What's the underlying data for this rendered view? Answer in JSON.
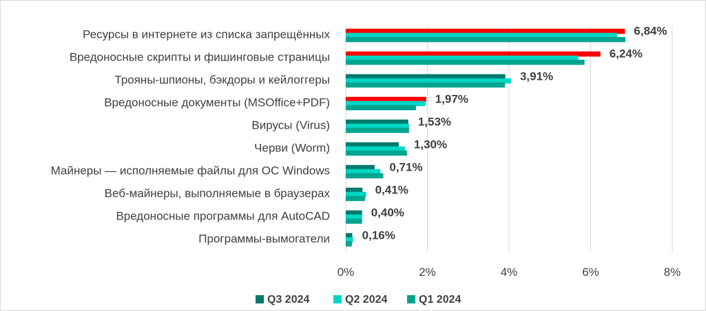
{
  "chart_data": {
    "type": "bar",
    "orientation": "horizontal",
    "categories": [
      "Ресурсы в интернете из списка запрещённых",
      "Вредоносные скрипты и фишинговые страницы",
      "Трояны-шпионы, бэкдоры и кейлоггеры",
      "Вредоносные документы (MSOffice+PDF)",
      "Вирусы (Virus)",
      "Черви (Worm)",
      "Майнеры — исполняемые файлы для ОС Windows",
      "Веб-майнеры, выполняемые в браузерах",
      "Вредоносные программы для AutoCAD",
      "Программы-вымогатели"
    ],
    "series": [
      {
        "name": "Q3 2024",
        "values": [
          6.84,
          6.24,
          3.91,
          1.97,
          1.53,
          1.3,
          0.71,
          0.41,
          0.4,
          0.16
        ]
      },
      {
        "name": "Q2 2024",
        "values": [
          6.65,
          5.7,
          4.05,
          1.95,
          1.55,
          1.45,
          0.85,
          0.5,
          0.4,
          0.18
        ]
      },
      {
        "name": "Q1 2024",
        "values": [
          6.85,
          5.85,
          3.9,
          1.72,
          1.55,
          1.5,
          0.92,
          0.47,
          0.4,
          0.15
        ]
      }
    ],
    "highlight_color": "#ff0000",
    "highlight_categories": [
      0,
      1,
      3
    ],
    "data_labels": [
      "6,84%",
      "6,24%",
      "3,91%",
      "1,97%",
      "1,53%",
      "1,30%",
      "0,71%",
      "0,41%",
      "0,40%",
      "0,16%"
    ],
    "xlim": [
      0,
      8
    ],
    "xticks": [
      0,
      2,
      4,
      6,
      8
    ],
    "xtick_labels": [
      "0%",
      "2%",
      "4%",
      "6%",
      "8%"
    ],
    "grid": "vertical",
    "legend_position": "bottom",
    "colors": {
      "Q3 2024": "#007a6c",
      "Q2 2024": "#00d6c4",
      "Q1 2024": "#00a58f",
      "grid": "#d9d9d9"
    }
  }
}
